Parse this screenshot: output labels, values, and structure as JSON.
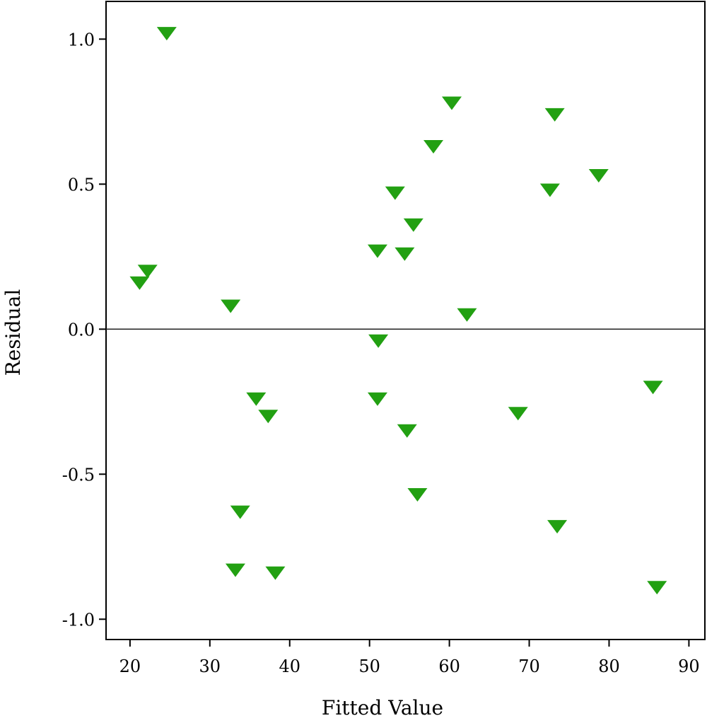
{
  "chart_data": {
    "type": "scatter",
    "title": "",
    "xlabel": "Fitted Value",
    "ylabel": "Residual",
    "xlim": [
      17,
      92
    ],
    "ylim": [
      -1.07,
      1.13
    ],
    "x_ticks": [
      20,
      30,
      40,
      50,
      60,
      70,
      80,
      90
    ],
    "x_tick_labels": [
      "20",
      "30",
      "40",
      "50",
      "60",
      "70",
      "80",
      "90"
    ],
    "y_ticks": [
      1.0,
      0.5,
      0.0,
      -0.5,
      -1.0
    ],
    "y_tick_labels": [
      "1.0",
      "0.5",
      "0.0",
      "-0.5",
      "-1.0"
    ],
    "reference_line_y": 0.0,
    "grid": false,
    "marker": "triangle-down",
    "marker_color": "#22a012",
    "points": [
      {
        "x": 24.6,
        "y": 1.02
      },
      {
        "x": 60.3,
        "y": 0.78
      },
      {
        "x": 73.2,
        "y": 0.74
      },
      {
        "x": 58.0,
        "y": 0.63
      },
      {
        "x": 78.7,
        "y": 0.53
      },
      {
        "x": 53.2,
        "y": 0.47
      },
      {
        "x": 72.6,
        "y": 0.48
      },
      {
        "x": 55.5,
        "y": 0.36
      },
      {
        "x": 51.0,
        "y": 0.27
      },
      {
        "x": 54.4,
        "y": 0.26
      },
      {
        "x": 22.2,
        "y": 0.2
      },
      {
        "x": 21.2,
        "y": 0.16
      },
      {
        "x": 32.6,
        "y": 0.08
      },
      {
        "x": 62.2,
        "y": 0.05
      },
      {
        "x": 51.1,
        "y": -0.04
      },
      {
        "x": 85.5,
        "y": -0.2
      },
      {
        "x": 35.8,
        "y": -0.24
      },
      {
        "x": 51.0,
        "y": -0.24
      },
      {
        "x": 37.3,
        "y": -0.3
      },
      {
        "x": 68.6,
        "y": -0.29
      },
      {
        "x": 54.7,
        "y": -0.35
      },
      {
        "x": 56.0,
        "y": -0.57
      },
      {
        "x": 33.8,
        "y": -0.63
      },
      {
        "x": 73.5,
        "y": -0.68
      },
      {
        "x": 33.2,
        "y": -0.83
      },
      {
        "x": 38.2,
        "y": -0.84
      },
      {
        "x": 86.0,
        "y": -0.89
      }
    ]
  }
}
